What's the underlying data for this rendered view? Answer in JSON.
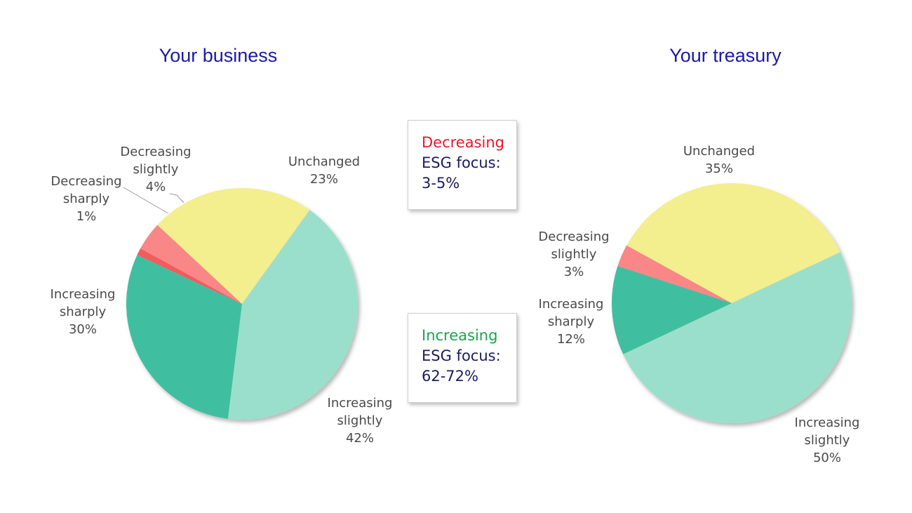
{
  "chart_data": [
    {
      "type": "pie",
      "title": "Your business",
      "slices": [
        {
          "name": "Decreasing sharply",
          "value": 1,
          "value_label": "1%",
          "color": "#f25c5c",
          "label_lines": [
            "Decreasing",
            "sharply",
            "1%"
          ]
        },
        {
          "name": "Decreasing slightly",
          "value": 4,
          "value_label": "4%",
          "color": "#f98787",
          "label_lines": [
            "Decreasing",
            "slightly",
            "4%"
          ]
        },
        {
          "name": "Unchanged",
          "value": 23,
          "value_label": "23%",
          "color": "#f3ee8e",
          "label_lines": [
            "Unchanged",
            "23%"
          ]
        },
        {
          "name": "Increasing slightly",
          "value": 42,
          "value_label": "42%",
          "color": "#9adfcc",
          "label_lines": [
            "Increasing",
            "slightly",
            "42%"
          ]
        },
        {
          "name": "Increasing sharply",
          "value": 30,
          "value_label": "30%",
          "color": "#3fbfa0",
          "label_lines": [
            "Increasing",
            "sharply",
            "30%"
          ]
        }
      ]
    },
    {
      "type": "pie",
      "title": "Your treasury",
      "slices": [
        {
          "name": "Decreasing slightly",
          "value": 3,
          "value_label": "3%",
          "color": "#f98787",
          "label_lines": [
            "Decreasing",
            "slightly",
            "3%"
          ]
        },
        {
          "name": "Unchanged",
          "value": 35,
          "value_label": "35%",
          "color": "#f3ee8e",
          "label_lines": [
            "Unchanged",
            "35%"
          ]
        },
        {
          "name": "Increasing slightly",
          "value": 50,
          "value_label": "50%",
          "color": "#9adfcc",
          "label_lines": [
            "Increasing",
            "slightly",
            "50%"
          ]
        },
        {
          "name": "Increasing sharply",
          "value": 12,
          "value_label": "12%",
          "color": "#3fbfa0",
          "label_lines": [
            "Increasing",
            "sharply",
            "12%"
          ]
        }
      ]
    }
  ],
  "callouts": {
    "decreasing": {
      "highlight": "Decreasing",
      "highlight_color": "#e8182a",
      "line2": "ESG focus:",
      "line3": "3-5%"
    },
    "increasing": {
      "highlight": "Increasing",
      "highlight_color": "#1aa64b",
      "line2": "ESG focus:",
      "line3": "62-72%"
    }
  },
  "colors": {
    "title": "#1a1aa6",
    "callout_text": "#1b1b64",
    "label_text": "#4a4a4a"
  }
}
